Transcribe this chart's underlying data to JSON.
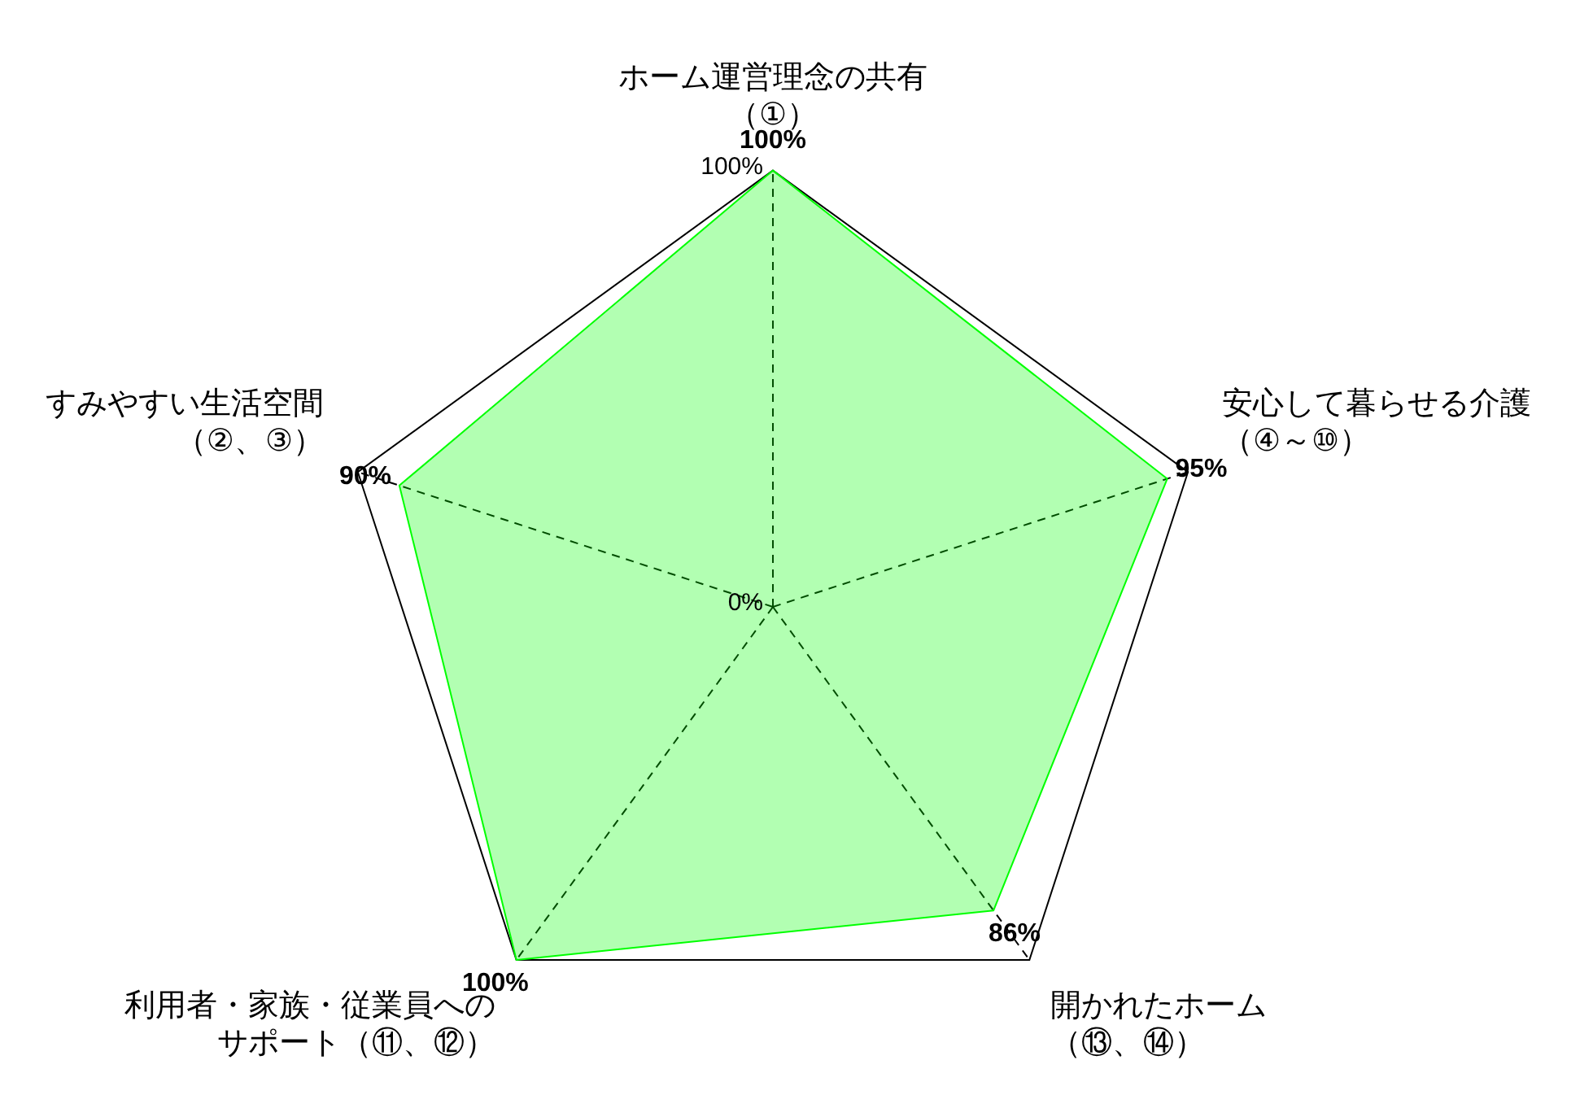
{
  "chart_data": {
    "type": "radar",
    "categories": [
      "ホーム運営理念の共有（①）",
      "安心して暮らせる介護（④～⑩）",
      "開かれたホーム（⑬、⑭）",
      "利用者・家族・従業員へのサポート（⑪、⑫）",
      "すみやすい生活空間（②、③）"
    ],
    "series": [
      {
        "color": "#00ff00",
        "values": [
          100,
          95,
          86,
          100,
          90
        ],
        "value_labels": [
          "100%",
          "95%",
          "86%",
          "100%",
          "90%"
        ]
      }
    ],
    "ylim": [
      0,
      100
    ],
    "yticks": [
      {
        "value": 0,
        "label": "0%"
      },
      {
        "value": 100,
        "label": "100%"
      }
    ],
    "grid": true,
    "legend": false,
    "marker": "none",
    "line_style": "solid"
  }
}
